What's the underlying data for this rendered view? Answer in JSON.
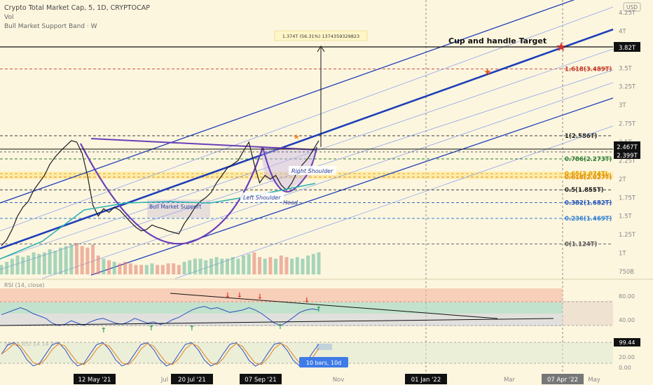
{
  "header": {
    "title": "Crypto Total Market Cap, 5, 1D, CRYPTOCAP",
    "indicator_vol": "Vol",
    "indicator_band": "Bull Market Support Band · W",
    "currency": "USD"
  },
  "chart_data": [
    {
      "type": "line",
      "title": "",
      "price_axis": [
        "4.25T",
        "4T",
        "3.75T",
        "3.5T",
        "3.25T",
        "3T",
        "2.75T",
        "2.5T",
        "2.25T",
        "2T",
        "1.75T",
        "1.5T",
        "1.25T",
        "1T",
        "750B"
      ],
      "time_axis": [
        "12 May '21",
        "Jul",
        "20 Jul '21",
        "07 Sep '21",
        "Nov",
        "01 Jan '22",
        "Mar",
        "07 Apr '22",
        "May"
      ],
      "price_badges": [
        {
          "label": "3.82T",
          "value": 3.82,
          "style": "dark"
        },
        {
          "label": "2.467T",
          "value": 2.467,
          "style": "dark"
        },
        {
          "label": "2.399T",
          "value": 2.399,
          "style": "dark"
        }
      ],
      "fib_levels": [
        {
          "label": "1.618(3.489T)",
          "value": 3.489,
          "color": "#c0392b"
        },
        {
          "label": "1(2.586T)",
          "value": 2.586,
          "color": "#222222"
        },
        {
          "label": "0.786(2.273T)",
          "value": 2.273,
          "color": "#2e7d32"
        },
        {
          "label": "0.65(2.074T)",
          "value": 2.074,
          "color": "#e0a100"
        },
        {
          "label": "0.618(2.027T)",
          "value": 2.027,
          "color": "#e08a00"
        },
        {
          "label": "0.5(1.855T)",
          "value": 1.855,
          "color": "#222222"
        },
        {
          "label": "0.382(1.682T)",
          "value": 1.682,
          "color": "#1e4fb8"
        },
        {
          "label": "0.236(1.469T)",
          "value": 1.469,
          "color": "#2f7fd0"
        },
        {
          "label": "0(1.124T)",
          "value": 1.124,
          "color": "#555555"
        }
      ],
      "annotations": {
        "target": "Cup and handle Target",
        "measure": "1.374T (56.31%) 1374359329823",
        "right_shoulder": "Right Shoulder",
        "left_shoulder": "Left Shoulder",
        "head": "Head",
        "support": "Bull Market Support",
        "bars": "10 bars, 10d"
      },
      "price_series": [
        1.1,
        1.18,
        1.32,
        1.5,
        1.62,
        1.7,
        1.85,
        1.95,
        2.05,
        2.2,
        2.3,
        2.38,
        2.45,
        2.52,
        2.5,
        2.35,
        2.05,
        1.65,
        1.5,
        1.6,
        1.55,
        1.62,
        1.58,
        1.5,
        1.42,
        1.35,
        1.3,
        1.32,
        1.38,
        1.35,
        1.33,
        1.3,
        1.28,
        1.26,
        1.4,
        1.5,
        1.62,
        1.7,
        1.75,
        1.82,
        1.95,
        2.05,
        2.15,
        2.2,
        2.25,
        2.38,
        2.5,
        2.2,
        1.95,
        2.05,
        2.0,
        2.05,
        1.92,
        1.85,
        1.95,
        2.1,
        2.2,
        2.28,
        2.4,
        2.52
      ],
      "volume_series": [
        0.3,
        0.4,
        0.5,
        0.6,
        0.55,
        0.6,
        0.7,
        0.65,
        0.7,
        0.8,
        0.75,
        0.85,
        0.9,
        0.95,
        1.0,
        0.9,
        0.85,
        0.95,
        0.6,
        0.5,
        0.45,
        0.4,
        0.35,
        0.4,
        0.35,
        0.3,
        0.3,
        0.3,
        0.35,
        0.3,
        0.3,
        0.35,
        0.35,
        0.3,
        0.4,
        0.45,
        0.5,
        0.5,
        0.45,
        0.5,
        0.55,
        0.5,
        0.5,
        0.55,
        0.5,
        0.6,
        0.65,
        0.7,
        0.55,
        0.5,
        0.55,
        0.5,
        0.6,
        0.55,
        0.5,
        0.55,
        0.5,
        0.6,
        0.65,
        0.7
      ]
    },
    {
      "type": "line",
      "title": "RSI (14, close)",
      "levels": [
        "80.00",
        "40.00"
      ],
      "rsi_series": [
        58,
        62,
        66,
        70,
        66,
        60,
        56,
        52,
        44,
        40,
        42,
        48,
        44,
        40,
        46,
        50,
        52,
        48,
        44,
        42,
        46,
        52,
        48,
        44,
        46,
        42,
        44,
        50,
        54,
        60,
        66,
        70,
        72,
        68,
        70,
        66,
        62,
        64,
        66,
        70,
        66,
        60,
        52,
        44,
        40,
        46,
        54,
        62,
        66,
        68,
        66
      ]
    },
    {
      "type": "line",
      "title": "Stoch RSI 14 14 3 3",
      "value_badge": "99.44",
      "levels": [
        "20.00",
        "0.00"
      ]
    }
  ]
}
